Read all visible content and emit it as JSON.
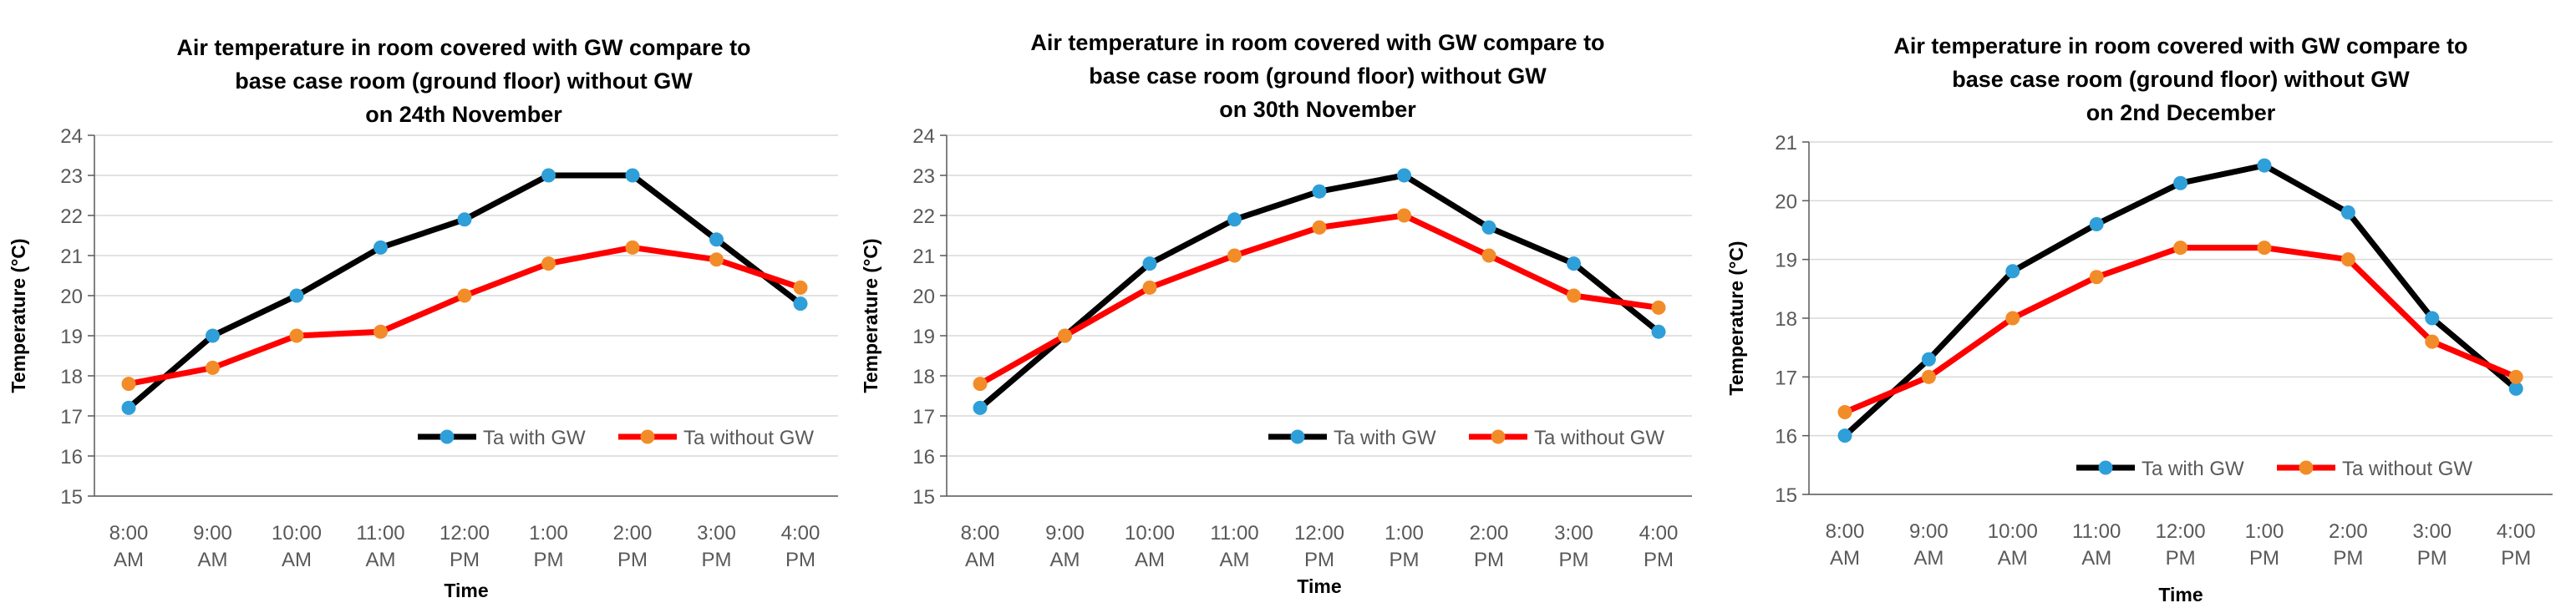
{
  "chart_data": [
    {
      "type": "line",
      "title": [
        "Air temperature in room covered with GW compare to",
        "base case room (ground floor) without GW",
        "on 24th   November"
      ],
      "xlabel": "Time",
      "ylabel": "Temperature (°C)",
      "categories": [
        [
          "8:00",
          "AM"
        ],
        [
          "9:00",
          "AM"
        ],
        [
          "10:00",
          "AM"
        ],
        [
          "11:00",
          "AM"
        ],
        [
          "12:00",
          "PM"
        ],
        [
          "1:00",
          "PM"
        ],
        [
          "2:00",
          "PM"
        ],
        [
          "3:00",
          "PM"
        ],
        [
          "4:00",
          "PM"
        ]
      ],
      "ylim": [
        15,
        24
      ],
      "yticks": [
        15,
        16,
        17,
        18,
        19,
        20,
        21,
        22,
        23,
        24
      ],
      "grid": true,
      "legend": "inside-bottom-right",
      "series": [
        {
          "name": "Ta with GW",
          "color": "#000000",
          "marker": "#2E9FD8",
          "values": [
            17.2,
            19.0,
            20.0,
            21.2,
            21.9,
            23.0,
            23.0,
            21.4,
            19.8
          ]
        },
        {
          "name": "Ta without GW",
          "color": "#FF0000",
          "marker": "#F28C28",
          "values": [
            17.8,
            18.2,
            19.0,
            19.1,
            20.0,
            20.8,
            21.2,
            20.9,
            20.2
          ]
        }
      ]
    },
    {
      "type": "line",
      "title": [
        "Air temperature in room covered with GW compare to",
        "base case room (ground floor) without GW",
        "on 30th November"
      ],
      "xlabel": "Time",
      "ylabel": "Temperature (°C)",
      "categories": [
        [
          "8:00",
          "AM"
        ],
        [
          "9:00",
          "AM"
        ],
        [
          "10:00",
          "AM"
        ],
        [
          "11:00",
          "AM"
        ],
        [
          "12:00",
          "PM"
        ],
        [
          "1:00",
          "PM"
        ],
        [
          "2:00",
          "PM"
        ],
        [
          "3:00",
          "PM"
        ],
        [
          "4:00",
          "PM"
        ]
      ],
      "ylim": [
        15,
        24
      ],
      "yticks": [
        15,
        16,
        17,
        18,
        19,
        20,
        21,
        22,
        23,
        24
      ],
      "grid": true,
      "legend": "inside-bottom-right",
      "series": [
        {
          "name": "Ta with GW",
          "color": "#000000",
          "marker": "#2E9FD8",
          "values": [
            17.2,
            19.0,
            20.8,
            21.9,
            22.6,
            23.0,
            21.7,
            20.8,
            19.1
          ]
        },
        {
          "name": "Ta without GW",
          "color": "#FF0000",
          "marker": "#F28C28",
          "values": [
            17.8,
            19.0,
            20.2,
            21.0,
            21.7,
            22.0,
            21.0,
            20.0,
            19.7
          ]
        }
      ]
    },
    {
      "type": "line",
      "title": [
        "Air temperature in room covered with GW compare to",
        "base case room (ground floor) without GW",
        "on 2nd  December"
      ],
      "xlabel": "Time",
      "ylabel": "Temperature (°C)",
      "categories": [
        [
          "8:00",
          "AM"
        ],
        [
          "9:00",
          "AM"
        ],
        [
          "10:00",
          "AM"
        ],
        [
          "11:00",
          "AM"
        ],
        [
          "12:00",
          "PM"
        ],
        [
          "1:00",
          "PM"
        ],
        [
          "2:00",
          "PM"
        ],
        [
          "3:00",
          "PM"
        ],
        [
          "4:00",
          "PM"
        ]
      ],
      "ylim": [
        15,
        21
      ],
      "yticks": [
        15,
        16,
        17,
        18,
        19,
        20,
        21
      ],
      "grid": true,
      "legend": "inside-bottom-right",
      "series": [
        {
          "name": "Ta with GW",
          "color": "#000000",
          "marker": "#2E9FD8",
          "values": [
            16.0,
            17.3,
            18.8,
            19.6,
            20.3,
            20.6,
            19.8,
            18.0,
            16.8
          ]
        },
        {
          "name": "Ta without GW",
          "color": "#FF0000",
          "marker": "#F28C28",
          "values": [
            16.4,
            17.0,
            18.0,
            18.7,
            19.2,
            19.2,
            19.0,
            17.6,
            17.0
          ]
        }
      ]
    }
  ]
}
